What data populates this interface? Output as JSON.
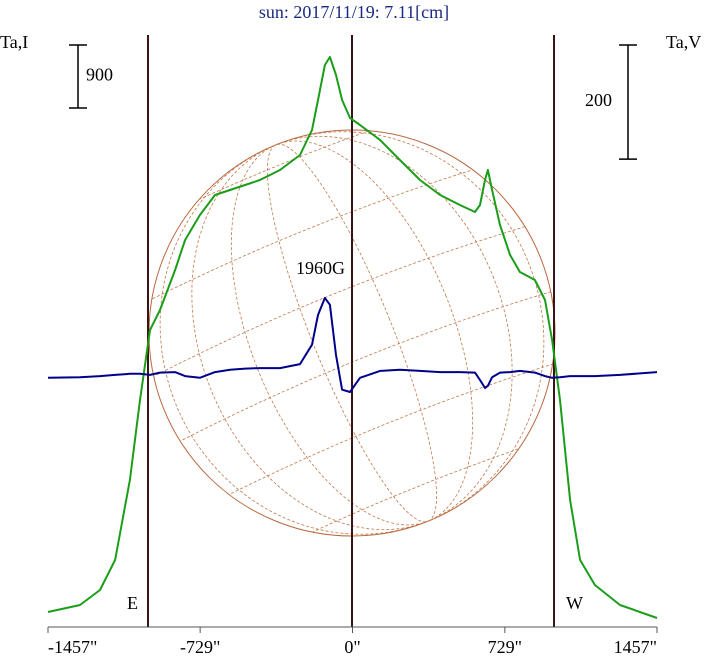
{
  "chart_data": {
    "type": "line",
    "title": "sun: 2017/11/19: 7.11[cm]",
    "y_label": "Ta,I",
    "y2_label": "Ta,V",
    "annotations": [
      "E",
      "W",
      "1960G"
    ],
    "scale_bars": [
      {
        "value": 900,
        "axis": "y"
      },
      {
        "value": 200,
        "axis": "y2"
      }
    ],
    "xlim": [
      -1457,
      1457
    ],
    "xticks": [
      {
        "value": -1457,
        "label": "-1457\""
      },
      {
        "value": -729,
        "label": "-729\""
      },
      {
        "value": 0,
        "label": "0\""
      },
      {
        "value": 729,
        "label": "729\""
      },
      {
        "value": 1457,
        "label": "1457\""
      }
    ],
    "ylim": [
      0,
      8460
    ],
    "y2lim": [
      -442,
      596
    ],
    "x": [
      -1457,
      -1304,
      -1208,
      -1136,
      -1065,
      -1017,
      -969,
      -921,
      -849,
      -801,
      -730,
      -658,
      -586,
      -514,
      -443,
      -347,
      -251,
      -194,
      -165,
      -132,
      -108,
      -79,
      -50,
      -12,
      36,
      132,
      227,
      323,
      419,
      514,
      586,
      610,
      634,
      648,
      668,
      706,
      754,
      801,
      873,
      921,
      955,
      993,
      1041,
      1089,
      1160,
      1280,
      1457
    ],
    "series": [
      {
        "name": "Ta,I",
        "color": "#1a9e1a",
        "values": [
          214,
          314,
          529,
          957,
          2101,
          3244,
          4244,
          4530,
          5102,
          5530,
          5887,
          6173,
          6245,
          6316,
          6388,
          6531,
          6745,
          7102,
          7531,
          8031,
          8145,
          7888,
          7531,
          7274,
          7174,
          6959,
          6673,
          6388,
          6173,
          6030,
          5930,
          6030,
          6388,
          6531,
          6245,
          5745,
          5316,
          5073,
          4959,
          4673,
          4101,
          3244,
          1815,
          957,
          600,
          314,
          129
        ]
      },
      {
        "name": "Ta,V",
        "color": "#00008b",
        "axis": "y2",
        "values": [
          -5,
          -4,
          -2,
          0,
          2,
          2,
          0,
          4,
          5,
          -2,
          -5,
          5,
          9,
          11,
          12,
          12,
          19,
          53,
          105,
          135,
          123,
          35,
          -26,
          -30,
          -5,
          7,
          9,
          7,
          5,
          5,
          4,
          -9,
          -23,
          -19,
          -4,
          4,
          5,
          7,
          4,
          -2,
          -5,
          -4,
          -2,
          -2,
          -2,
          0,
          5
        ]
      }
    ]
  }
}
